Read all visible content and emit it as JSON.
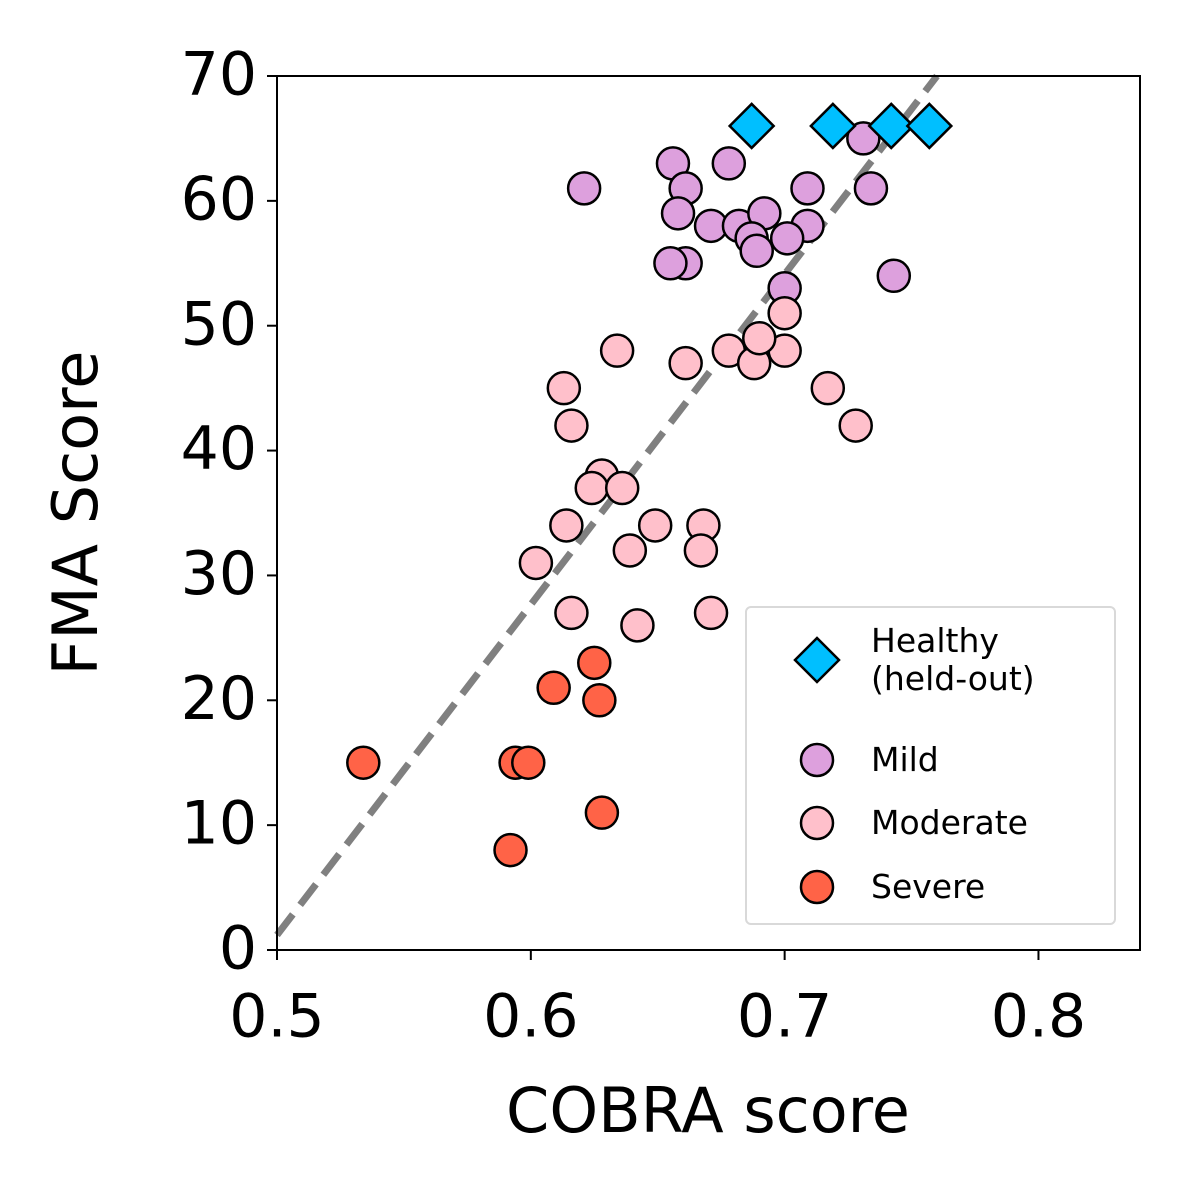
{
  "chart_data": {
    "type": "scatter",
    "xlabel": "COBRA score",
    "ylabel": "FMA Score",
    "xlim": [
      0.5,
      0.84
    ],
    "ylim": [
      0,
      70
    ],
    "xticks": [
      0.5,
      0.6,
      0.7,
      0.8
    ],
    "yticks": [
      0,
      10,
      20,
      30,
      40,
      50,
      60,
      70
    ],
    "legend_position": "lower right",
    "reference_line": {
      "x": [
        0.5,
        0.76
      ],
      "y": [
        1.2,
        70
      ],
      "color": "#808080",
      "style": "dashed"
    },
    "series": [
      {
        "name": "Healthy\n(held-out)",
        "color": "#00bfff",
        "marker": "diamond",
        "x": [
          0.687,
          0.719,
          0.742,
          0.757
        ],
        "values": [
          66,
          66,
          66,
          66
        ]
      },
      {
        "name": "Mild",
        "color": "#dda0dd",
        "marker": "circle",
        "x": [
          0.621,
          0.656,
          0.678,
          0.731,
          0.661,
          0.709,
          0.734,
          0.658,
          0.671,
          0.682,
          0.692,
          0.709,
          0.687,
          0.701,
          0.689,
          0.661,
          0.655,
          0.7,
          0.743
        ],
        "values": [
          61,
          63,
          63,
          65,
          61,
          61,
          61,
          59,
          58,
          58,
          59,
          58,
          57,
          57,
          56,
          55,
          55,
          53,
          54
        ]
      },
      {
        "name": "Moderate",
        "color": "#ffc0cb",
        "marker": "circle",
        "x": [
          0.634,
          0.661,
          0.678,
          0.688,
          0.7,
          0.69,
          0.7,
          0.613,
          0.616,
          0.717,
          0.728,
          0.628,
          0.624,
          0.636,
          0.614,
          0.649,
          0.668,
          0.639,
          0.667,
          0.602,
          0.616,
          0.642,
          0.671
        ],
        "values": [
          48,
          47,
          48,
          47,
          48,
          49,
          51,
          45,
          42,
          45,
          42,
          38,
          37,
          37,
          34,
          34,
          34,
          32,
          32,
          31,
          27,
          26,
          27
        ]
      },
      {
        "name": "Severe",
        "color": "#ff6347",
        "marker": "circle",
        "x": [
          0.534,
          0.594,
          0.599,
          0.609,
          0.625,
          0.627,
          0.628,
          0.592
        ],
        "values": [
          15,
          15,
          15,
          21,
          23,
          20,
          11,
          8
        ]
      }
    ]
  }
}
